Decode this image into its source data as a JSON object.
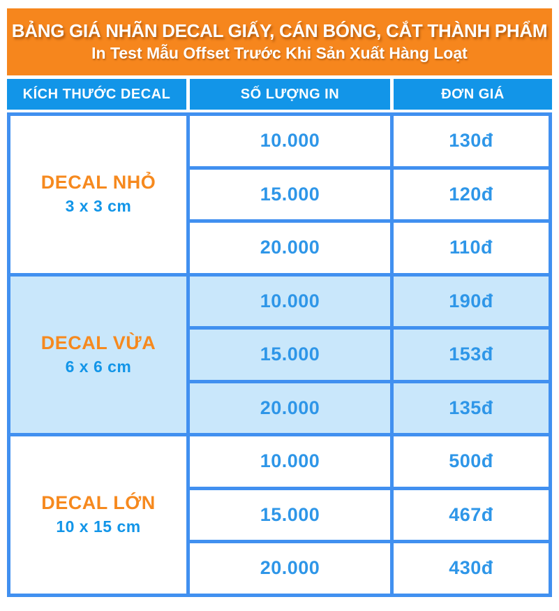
{
  "banner": {
    "title": "BẢNG GIÁ NHÃN DECAL GIẤY, CÁN BÓNG, CẮT THÀNH PHẨM",
    "subtitle": "In Test Mẫu Offset Trước Khi Sản Xuất Hàng Loạt"
  },
  "columns": {
    "size": "KÍCH THƯỚC DECAL",
    "quantity": "SỐ LƯỢNG IN",
    "price": "ĐƠN GIÁ"
  },
  "groups": [
    {
      "name": "DECAL NHỎ",
      "size": "3 x 3 cm",
      "highlighted": false,
      "rows": [
        {
          "quantity": "10.000",
          "price": "130đ"
        },
        {
          "quantity": "15.000",
          "price": "120đ"
        },
        {
          "quantity": "20.000",
          "price": "110đ"
        }
      ]
    },
    {
      "name": "DECAL VỪA",
      "size": "6 x 6 cm",
      "highlighted": true,
      "rows": [
        {
          "quantity": "10.000",
          "price": "190đ"
        },
        {
          "quantity": "15.000",
          "price": "153đ"
        },
        {
          "quantity": "20.000",
          "price": "135đ"
        }
      ]
    },
    {
      "name": "DECAL LỚN",
      "size": "10 x 15 cm",
      "highlighted": false,
      "rows": [
        {
          "quantity": "10.000",
          "price": "500đ"
        },
        {
          "quantity": "15.000",
          "price": "467đ"
        },
        {
          "quantity": "20.000",
          "price": "430đ"
        }
      ]
    }
  ],
  "chart_data": {
    "type": "table",
    "title": "BẢNG GIÁ NHÃN DECAL GIẤY, CÁN BÓNG, CẮT THÀNH PHẨM",
    "subtitle": "In Test Mẫu Offset Trước Khi Sản Xuất Hàng Loạt",
    "columns": [
      "KÍCH THƯỚC DECAL",
      "SỐ LƯỢNG IN",
      "ĐƠN GIÁ"
    ],
    "rows": [
      [
        "DECAL NHỎ 3 x 3 cm",
        "10.000",
        "130đ"
      ],
      [
        "DECAL NHỎ 3 x 3 cm",
        "15.000",
        "120đ"
      ],
      [
        "DECAL NHỎ 3 x 3 cm",
        "20.000",
        "110đ"
      ],
      [
        "DECAL VỪA 6 x 6 cm",
        "10.000",
        "190đ"
      ],
      [
        "DECAL VỪA 6 x 6 cm",
        "15.000",
        "153đ"
      ],
      [
        "DECAL VỪA 6 x 6 cm",
        "20.000",
        "135đ"
      ],
      [
        "DECAL LỚN 10 x 15 cm",
        "10.000",
        "500đ"
      ],
      [
        "DECAL LỚN 10 x 15 cm",
        "15.000",
        "467đ"
      ],
      [
        "DECAL LỚN 10 x 15 cm",
        "20.000",
        "430đ"
      ]
    ]
  },
  "colors": {
    "banner_bg": "#F6861D",
    "header_bg": "#1295E8",
    "border_blue": "#4190F0",
    "highlight_bg": "#C9E7FB",
    "text_blue": "#2E96E8",
    "text_orange": "#F6891E",
    "text_white": "#FFFFFF"
  }
}
